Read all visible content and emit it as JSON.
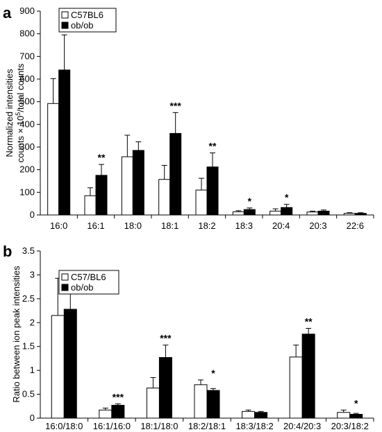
{
  "chart_data": [
    {
      "panel": "a",
      "type": "bar",
      "ylabel_lines": [
        "Normalized intensities",
        "counts × 10",
        "5",
        "/total counts"
      ],
      "ylim": [
        0,
        900
      ],
      "yticks": [
        0,
        100,
        200,
        300,
        400,
        500,
        600,
        700,
        800,
        900
      ],
      "categories": [
        "16:0",
        "16:1",
        "18:0",
        "18:1",
        "18:2",
        "18:3",
        "20:4",
        "20:3",
        "22:6"
      ],
      "legend": {
        "placement": "top-left"
      },
      "series": [
        {
          "name": "C57BL6",
          "color": "#ffffff",
          "values": [
            492,
            85,
            257,
            157,
            110,
            14,
            17,
            13,
            7
          ],
          "errors": [
            110,
            35,
            95,
            62,
            52,
            5,
            10,
            4,
            3
          ]
        },
        {
          "name": "ob/ob",
          "color": "#000000",
          "values": [
            640,
            175,
            285,
            360,
            212,
            24,
            33,
            17,
            7
          ],
          "errors": [
            155,
            48,
            38,
            92,
            62,
            7,
            14,
            5,
            3
          ]
        }
      ],
      "significance": [
        "",
        "**",
        "",
        "***",
        "**",
        "*",
        "*",
        "",
        ""
      ]
    },
    {
      "panel": "b",
      "type": "bar",
      "ylabel_lines": [
        "Ratio between ion peak intensities"
      ],
      "ylim": [
        0,
        3.5
      ],
      "yticks": [
        "0",
        "0.5",
        "1",
        "1.5",
        "2",
        "2.5",
        "3",
        "3.5"
      ],
      "categories": [
        "16:0/18:0",
        "16:1/16:0",
        "18:1/18:0",
        "18:2/18:1",
        "18:3/18:2",
        "20:4/20:3",
        "20:3/18:2"
      ],
      "legend": {
        "placement": "top-left"
      },
      "series": [
        {
          "name": "C57/BL6",
          "color": "#ffffff",
          "values": [
            2.15,
            0.17,
            0.63,
            0.7,
            0.14,
            1.28,
            0.12
          ],
          "errors": [
            0.78,
            0.04,
            0.22,
            0.1,
            0.03,
            0.25,
            0.05
          ]
        },
        {
          "name": "ob/ob",
          "color": "#000000",
          "values": [
            2.28,
            0.27,
            1.27,
            0.58,
            0.12,
            1.76,
            0.08
          ],
          "errors": [
            0.5,
            0.03,
            0.26,
            0.04,
            0.02,
            0.12,
            0.02
          ]
        }
      ],
      "significance": [
        "",
        "***",
        "***",
        "*",
        "",
        "**",
        "*"
      ]
    }
  ]
}
